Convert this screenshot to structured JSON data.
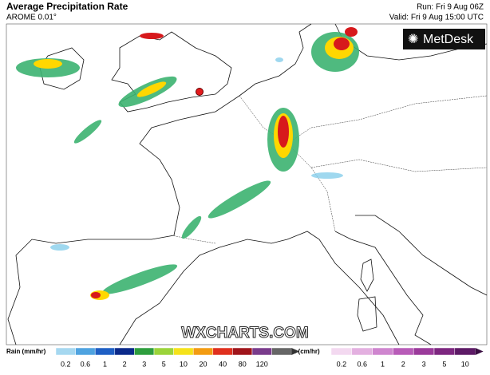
{
  "header": {
    "title": "Average Precipitation Rate",
    "subtitle": "AROME 0.01°",
    "run": "Run: Fri 9 Aug 06Z",
    "valid": "Valid: Fri 9 Aug 15:00 UTC"
  },
  "logo": "MetDesk",
  "watermark": "WXCHARTS.COM",
  "legend": {
    "rain": {
      "label": "Rain (mm/hr)",
      "ticks": [
        0.2,
        0.6,
        1,
        2,
        3,
        5,
        10,
        20,
        40,
        80,
        120
      ]
    },
    "snow": {
      "label": "Snow (cm/hr)",
      "ticks": [
        0.2,
        0.6,
        1,
        2,
        3,
        5,
        10
      ]
    }
  }
}
